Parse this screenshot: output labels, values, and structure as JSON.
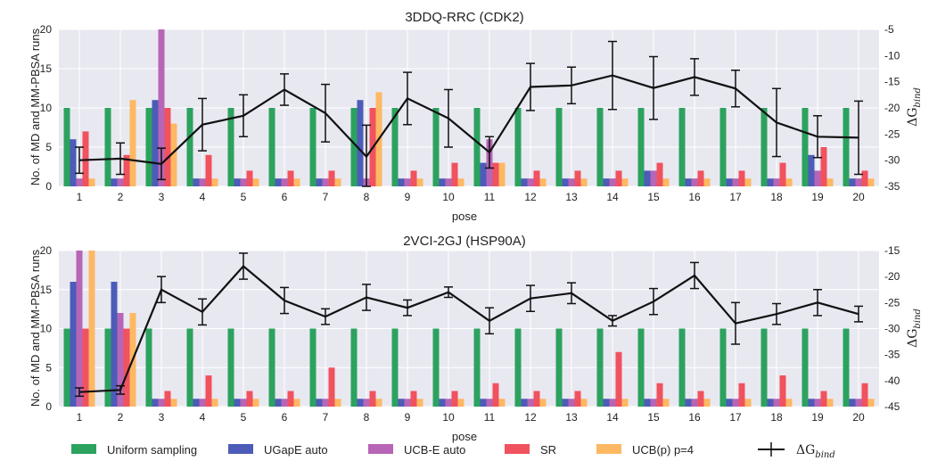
{
  "chart_data": [
    {
      "type": "bar",
      "title": "3DDQ-RRC (CDK2)",
      "xlabel": "pose",
      "ylabel": "No. of MD and MM-PBSA runs",
      "y2label_base": "ΔG",
      "y2label_sub": "bind",
      "categories": [
        "1",
        "2",
        "3",
        "4",
        "5",
        "6",
        "7",
        "8",
        "9",
        "10",
        "11",
        "12",
        "13",
        "14",
        "15",
        "16",
        "17",
        "18",
        "19",
        "20"
      ],
      "ylim": [
        0,
        20
      ],
      "yticks": [
        "0",
        "5",
        "10",
        "15",
        "20"
      ],
      "y2lim": [
        -35,
        -5
      ],
      "y2ticks": [
        "-35",
        "-30",
        "-25",
        "-20",
        "-15",
        "-10",
        "-5"
      ],
      "grid": true,
      "series": [
        {
          "name": "Uniform sampling",
          "color": "#2ca25f",
          "values": [
            10,
            10,
            10,
            10,
            10,
            10,
            10,
            10,
            10,
            10,
            10,
            10,
            10,
            10,
            10,
            10,
            10,
            10,
            10,
            10
          ]
        },
        {
          "name": "UGapE auto",
          "color": "#4c5cb8",
          "values": [
            6,
            1,
            11,
            1,
            1,
            1,
            1,
            11,
            1,
            1,
            3,
            1,
            1,
            1,
            2,
            1,
            1,
            1,
            4,
            1
          ]
        },
        {
          "name": "UCB-E auto",
          "color": "#b765b6",
          "values": [
            1,
            1,
            20,
            1,
            1,
            1,
            1,
            1,
            1,
            1,
            6,
            1,
            1,
            1,
            2,
            1,
            1,
            1,
            2,
            1
          ]
        },
        {
          "name": "SR",
          "color": "#f0525e",
          "values": [
            7,
            4,
            10,
            4,
            2,
            2,
            2,
            10,
            2,
            3,
            3,
            2,
            2,
            2,
            3,
            2,
            2,
            3,
            5,
            2
          ]
        },
        {
          "name": "UCB(p) p=4",
          "color": "#fdb863",
          "values": [
            1,
            11,
            8,
            1,
            1,
            1,
            1,
            12,
            1,
            1,
            3,
            1,
            1,
            1,
            1,
            1,
            1,
            1,
            1,
            1
          ]
        }
      ],
      "line": {
        "name": "ΔG",
        "name_sub": "bind",
        "values": [
          -30,
          -29.7,
          -30.7,
          -23.2,
          -21.5,
          -16.5,
          -21,
          -29.3,
          -18.2,
          -22,
          -28.5,
          -16,
          -15.7,
          -13.8,
          -16.2,
          -14.1,
          -16.3,
          -22.8,
          -25.5,
          -25.7
        ],
        "err": [
          2.5,
          3,
          3,
          5,
          4,
          3,
          5.5,
          6,
          5,
          5.5,
          3,
          4.5,
          3.5,
          6.5,
          6,
          3.5,
          3.5,
          6.5,
          4,
          7
        ]
      }
    },
    {
      "type": "bar",
      "title": "2VCI-2GJ (HSP90A)",
      "xlabel": "pose",
      "ylabel": "No. of MD and MM-PBSA runs",
      "y2label_base": "ΔG",
      "y2label_sub": "bind",
      "categories": [
        "1",
        "2",
        "3",
        "4",
        "5",
        "6",
        "7",
        "8",
        "9",
        "10",
        "11",
        "12",
        "13",
        "14",
        "15",
        "16",
        "17",
        "18",
        "19",
        "20"
      ],
      "ylim": [
        0,
        20
      ],
      "yticks": [
        "0",
        "5",
        "10",
        "15",
        "20"
      ],
      "y2lim": [
        -45,
        -15
      ],
      "y2ticks": [
        "-45",
        "-40",
        "-35",
        "-30",
        "-25",
        "-20",
        "-15"
      ],
      "grid": true,
      "series": [
        {
          "name": "Uniform sampling",
          "color": "#2ca25f",
          "values": [
            10,
            10,
            10,
            10,
            10,
            10,
            10,
            10,
            10,
            10,
            10,
            10,
            10,
            10,
            10,
            10,
            10,
            10,
            10,
            10
          ]
        },
        {
          "name": "UGapE auto",
          "color": "#4c5cb8",
          "values": [
            16,
            16,
            1,
            1,
            1,
            1,
            1,
            1,
            1,
            1,
            1,
            1,
            1,
            1,
            1,
            1,
            1,
            1,
            1,
            1
          ]
        },
        {
          "name": "UCB-E auto",
          "color": "#b765b6",
          "values": [
            20,
            12,
            1,
            1,
            1,
            1,
            1,
            1,
            1,
            1,
            1,
            1,
            1,
            1,
            1,
            1,
            1,
            1,
            1,
            1
          ]
        },
        {
          "name": "SR",
          "color": "#f0525e",
          "values": [
            10,
            10,
            2,
            4,
            2,
            2,
            5,
            2,
            2,
            2,
            3,
            2,
            2,
            7,
            3,
            2,
            3,
            4,
            2,
            3
          ]
        },
        {
          "name": "UCB(p) p=4",
          "color": "#fdb863",
          "values": [
            20,
            12,
            1,
            1,
            1,
            1,
            1,
            1,
            1,
            1,
            1,
            1,
            1,
            1,
            1,
            1,
            1,
            1,
            1,
            1
          ]
        }
      ],
      "line": {
        "name": "ΔG",
        "name_sub": "bind",
        "values": [
          -42.2,
          -41.8,
          -22.5,
          -26.8,
          -18,
          -24.6,
          -27.7,
          -24,
          -26,
          -23,
          -28.5,
          -24.2,
          -23.2,
          -28.5,
          -24.8,
          -19.8,
          -29,
          -27.2,
          -25,
          -27.2
        ],
        "err": [
          0.8,
          0.8,
          2.5,
          2.5,
          2.5,
          2.5,
          1.5,
          2.5,
          1.5,
          1,
          2.5,
          2.5,
          2,
          1,
          2.5,
          2.5,
          4,
          2,
          2.5,
          1.5
        ]
      }
    }
  ],
  "legend": {
    "items": [
      "Uniform sampling",
      "UGapE auto",
      "UCB-E auto",
      "SR",
      "UCB(p) p=4"
    ],
    "line_base": "ΔG",
    "line_sub": "bind"
  }
}
